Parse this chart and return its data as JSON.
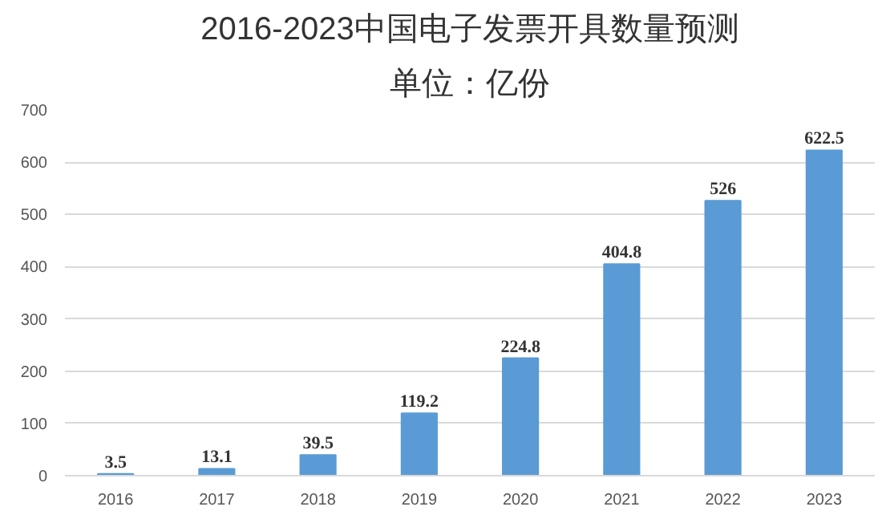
{
  "chart_data": {
    "type": "bar",
    "title": "2016-2023中国电子发票开具数量预测",
    "subtitle": "单位：亿份",
    "categories": [
      "2016",
      "2017",
      "2018",
      "2019",
      "2020",
      "2021",
      "2022",
      "2023"
    ],
    "values": [
      3.5,
      13.1,
      39.5,
      119.2,
      224.8,
      404.8,
      526,
      622.5
    ],
    "color": "#5b9bd5",
    "ylim": [
      0,
      700
    ],
    "yticks": [
      0,
      100,
      200,
      300,
      400,
      500,
      600,
      700
    ],
    "grid": "y",
    "data_labels": true
  }
}
